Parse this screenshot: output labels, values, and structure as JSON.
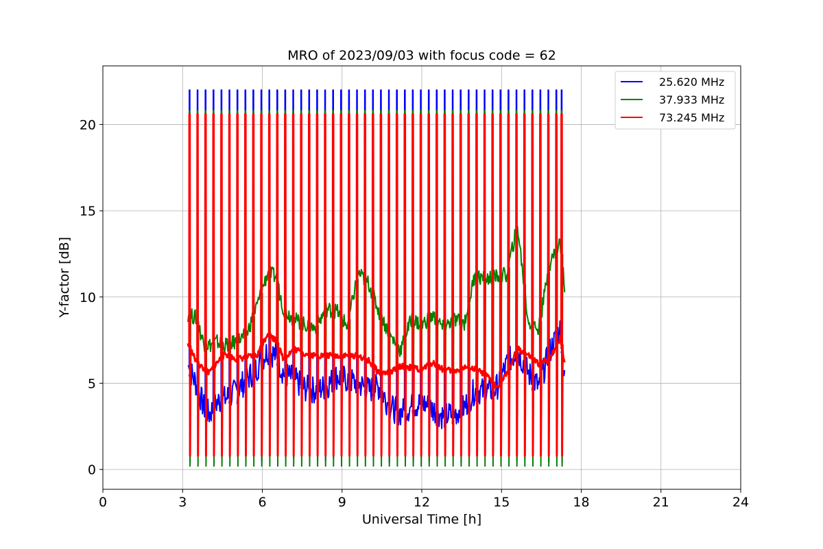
{
  "chart_data": {
    "type": "line",
    "title": "MRO of 2023/09/03 with focus code = 62",
    "xlabel": "Universal Time [h]",
    "ylabel": "Y-factor [dB]",
    "xlim": [
      0,
      24
    ],
    "ylim": [
      -1.15,
      23.4
    ],
    "xticks": [
      0,
      3,
      6,
      9,
      12,
      15,
      18,
      21,
      24
    ],
    "yticks": [
      0,
      5,
      10,
      15,
      20
    ],
    "grid": true,
    "legend_position": "top-right",
    "series": [
      {
        "name": "25.620 MHz",
        "color": "#0000ff",
        "baseline": {
          "x": [
            3.2,
            3.5,
            3.8,
            4.0,
            4.3,
            4.6,
            5.0,
            5.4,
            5.8,
            6.2,
            6.5,
            6.8,
            7.2,
            7.6,
            8.0,
            8.4,
            8.8,
            9.2,
            9.6,
            10.0,
            10.4,
            10.8,
            11.2,
            11.6,
            12.0,
            12.4,
            12.8,
            13.2,
            13.6,
            14.0,
            14.4,
            14.8,
            15.2,
            15.6,
            16.0,
            16.4,
            16.8,
            17.2,
            17.4
          ],
          "y": [
            6.0,
            5.0,
            3.6,
            3.2,
            3.9,
            4.1,
            4.5,
            5.2,
            5.9,
            6.9,
            6.6,
            5.6,
            5.2,
            4.7,
            4.6,
            4.8,
            5.4,
            5.2,
            5.0,
            4.6,
            4.8,
            3.6,
            3.3,
            3.6,
            3.9,
            3.5,
            3.1,
            3.2,
            3.6,
            4.6,
            4.5,
            4.7,
            6.1,
            6.9,
            5.6,
            4.8,
            6.8,
            8.1,
            4.7
          ]
        },
        "spike_peak": 22.0
      },
      {
        "name": "37.933 MHz",
        "color": "#008000",
        "baseline": {
          "x": [
            3.2,
            3.5,
            3.8,
            4.0,
            4.3,
            4.6,
            5.0,
            5.4,
            5.8,
            6.2,
            6.5,
            6.8,
            7.2,
            7.6,
            8.0,
            8.4,
            8.8,
            9.2,
            9.6,
            10.0,
            10.4,
            10.8,
            11.2,
            11.6,
            12.0,
            12.4,
            12.8,
            13.2,
            13.6,
            14.0,
            14.4,
            14.8,
            15.2,
            15.6,
            16.0,
            16.4,
            16.8,
            17.2,
            17.4
          ],
          "y": [
            9.0,
            8.8,
            7.3,
            7.2,
            7.4,
            7.2,
            7.4,
            7.8,
            9.5,
            11.4,
            11.2,
            9.3,
            8.7,
            8.4,
            8.2,
            9.3,
            9.2,
            8.3,
            11.4,
            10.8,
            9.1,
            7.8,
            6.9,
            8.7,
            8.4,
            8.9,
            8.2,
            8.7,
            8.5,
            11.3,
            11.0,
            11.2,
            11.3,
            14.2,
            8.6,
            8.1,
            11.9,
            13.2,
            10.2
          ]
        },
        "spike_peak": 20.8,
        "spike_floor": 0.2
      },
      {
        "name": "73.245 MHz",
        "color": "#ff0000",
        "baseline": {
          "x": [
            3.2,
            3.5,
            3.8,
            4.0,
            4.3,
            4.6,
            5.0,
            5.4,
            5.8,
            6.2,
            6.5,
            6.8,
            7.2,
            7.6,
            8.0,
            8.4,
            8.8,
            9.2,
            9.6,
            10.0,
            10.4,
            10.8,
            11.2,
            11.6,
            12.0,
            12.4,
            12.8,
            13.2,
            13.6,
            14.0,
            14.4,
            14.8,
            15.2,
            15.6,
            16.0,
            16.4,
            16.8,
            17.2,
            17.4
          ],
          "y": [
            7.3,
            6.3,
            5.8,
            5.6,
            6.2,
            6.7,
            6.4,
            6.5,
            6.6,
            7.9,
            7.5,
            6.4,
            7.0,
            6.7,
            6.6,
            6.6,
            6.6,
            6.6,
            6.6,
            6.3,
            5.6,
            5.6,
            6.0,
            5.9,
            5.8,
            6.2,
            5.8,
            5.7,
            5.9,
            5.8,
            5.5,
            4.8,
            5.5,
            7.0,
            6.6,
            6.1,
            6.4,
            7.6,
            6.0
          ]
        },
        "spike_peak": 20.6,
        "spike_floor": 0.8
      }
    ],
    "spike_times": [
      3.25,
      3.55,
      3.85,
      4.15,
      4.45,
      4.75,
      5.05,
      5.35,
      5.65,
      5.95,
      6.25,
      6.55,
      6.85,
      7.15,
      7.45,
      7.75,
      8.05,
      8.35,
      8.65,
      8.95,
      9.25,
      9.55,
      9.85,
      10.15,
      10.45,
      10.75,
      11.05,
      11.35,
      11.65,
      11.95,
      12.25,
      12.55,
      12.85,
      13.15,
      13.45,
      13.75,
      14.05,
      14.35,
      14.65,
      14.95,
      15.25,
      15.55,
      15.85,
      16.15,
      16.45,
      16.75,
      17.05,
      17.25
    ]
  }
}
